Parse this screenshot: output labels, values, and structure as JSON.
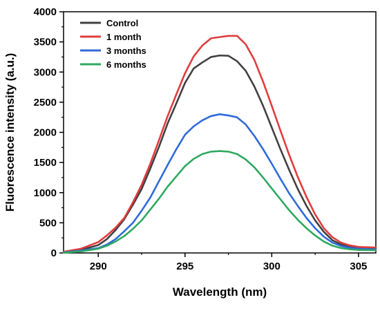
{
  "chart_data": {
    "type": "line",
    "title": "",
    "xlabel": "Wavelength (nm)",
    "ylabel": "Fluorescence intensity (a.u.)",
    "xlim": [
      288,
      306
    ],
    "ylim": [
      0,
      4000
    ],
    "xticks": [
      290,
      295,
      300,
      305
    ],
    "yticks": [
      0,
      500,
      1000,
      1500,
      2000,
      2500,
      3000,
      3500,
      4000
    ],
    "grid": false,
    "legend_position": "top-left",
    "x": [
      288,
      289,
      290,
      290.5,
      291,
      291.5,
      292,
      292.5,
      293,
      293.5,
      294,
      294.5,
      295,
      295.5,
      296,
      296.5,
      297,
      297.5,
      298,
      298.5,
      299,
      299.5,
      300,
      300.5,
      301,
      301.5,
      302,
      302.5,
      303,
      303.5,
      304,
      304.5,
      305,
      306
    ],
    "series": [
      {
        "name": "Control",
        "color": "#404040",
        "values": [
          15,
          50,
          130,
          230,
          380,
          560,
          800,
          1060,
          1400,
          1760,
          2150,
          2480,
          2820,
          3060,
          3160,
          3250,
          3275,
          3270,
          3180,
          3020,
          2760,
          2440,
          2080,
          1720,
          1380,
          1060,
          780,
          540,
          350,
          210,
          140,
          100,
          85,
          80
        ]
      },
      {
        "name": "1 month",
        "color": "#e03c3c",
        "values": [
          20,
          70,
          180,
          290,
          420,
          580,
          840,
          1130,
          1480,
          1870,
          2270,
          2630,
          2980,
          3260,
          3440,
          3560,
          3580,
          3600,
          3600,
          3460,
          3200,
          2840,
          2440,
          2030,
          1630,
          1260,
          930,
          640,
          410,
          260,
          170,
          125,
          100,
          90
        ]
      },
      {
        "name": "3 months",
        "color": "#2f6ad9",
        "values": [
          10,
          40,
          80,
          140,
          230,
          360,
          500,
          700,
          920,
          1190,
          1460,
          1720,
          1960,
          2100,
          2200,
          2270,
          2300,
          2280,
          2250,
          2130,
          1940,
          1720,
          1480,
          1230,
          990,
          780,
          580,
          410,
          270,
          170,
          115,
          85,
          70,
          60
        ]
      },
      {
        "name": "6 months",
        "color": "#2ea860",
        "values": [
          5,
          25,
          70,
          120,
          190,
          280,
          400,
          540,
          720,
          900,
          1100,
          1270,
          1440,
          1560,
          1640,
          1680,
          1690,
          1680,
          1640,
          1550,
          1420,
          1250,
          1070,
          890,
          710,
          550,
          410,
          290,
          190,
          120,
          80,
          60,
          50,
          45
        ]
      }
    ]
  }
}
